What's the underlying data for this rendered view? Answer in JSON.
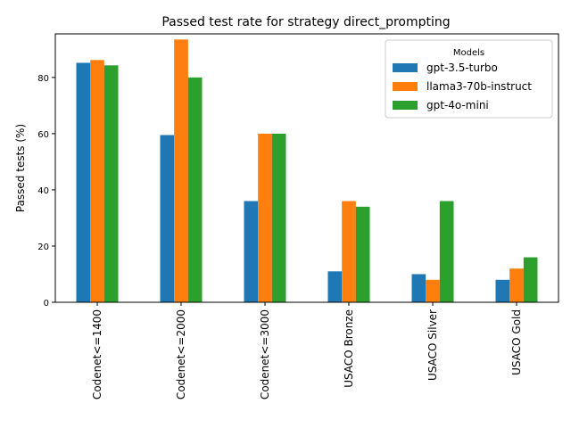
{
  "chart_data": {
    "type": "bar",
    "title": "Passed test rate for strategy direct_prompting",
    "xlabel": "",
    "ylabel": "Passed tests (%)",
    "ylim": [
      0,
      95.5
    ],
    "yticks": [
      0,
      20,
      40,
      60,
      80
    ],
    "categories": [
      "Codenet<=1400",
      "Codenet<=2000",
      "Codenet<=3000",
      "USACO Bronze",
      "USACO Silver",
      "USACO Gold"
    ],
    "series": [
      {
        "name": "gpt-3.5-turbo",
        "color": "#1f77b4",
        "values": [
          85.2,
          59.5,
          36.0,
          11.0,
          10.0,
          8.0
        ]
      },
      {
        "name": "llama3-70b-instruct",
        "color": "#ff7f0e",
        "values": [
          86.2,
          93.5,
          60.0,
          36.0,
          8.0,
          12.0
        ]
      },
      {
        "name": "gpt-4o-mini",
        "color": "#2ca02c",
        "values": [
          84.3,
          80.0,
          60.0,
          34.0,
          36.0,
          16.0
        ]
      }
    ],
    "legend": {
      "title": "Models",
      "position": "top-right"
    },
    "grid": false
  }
}
